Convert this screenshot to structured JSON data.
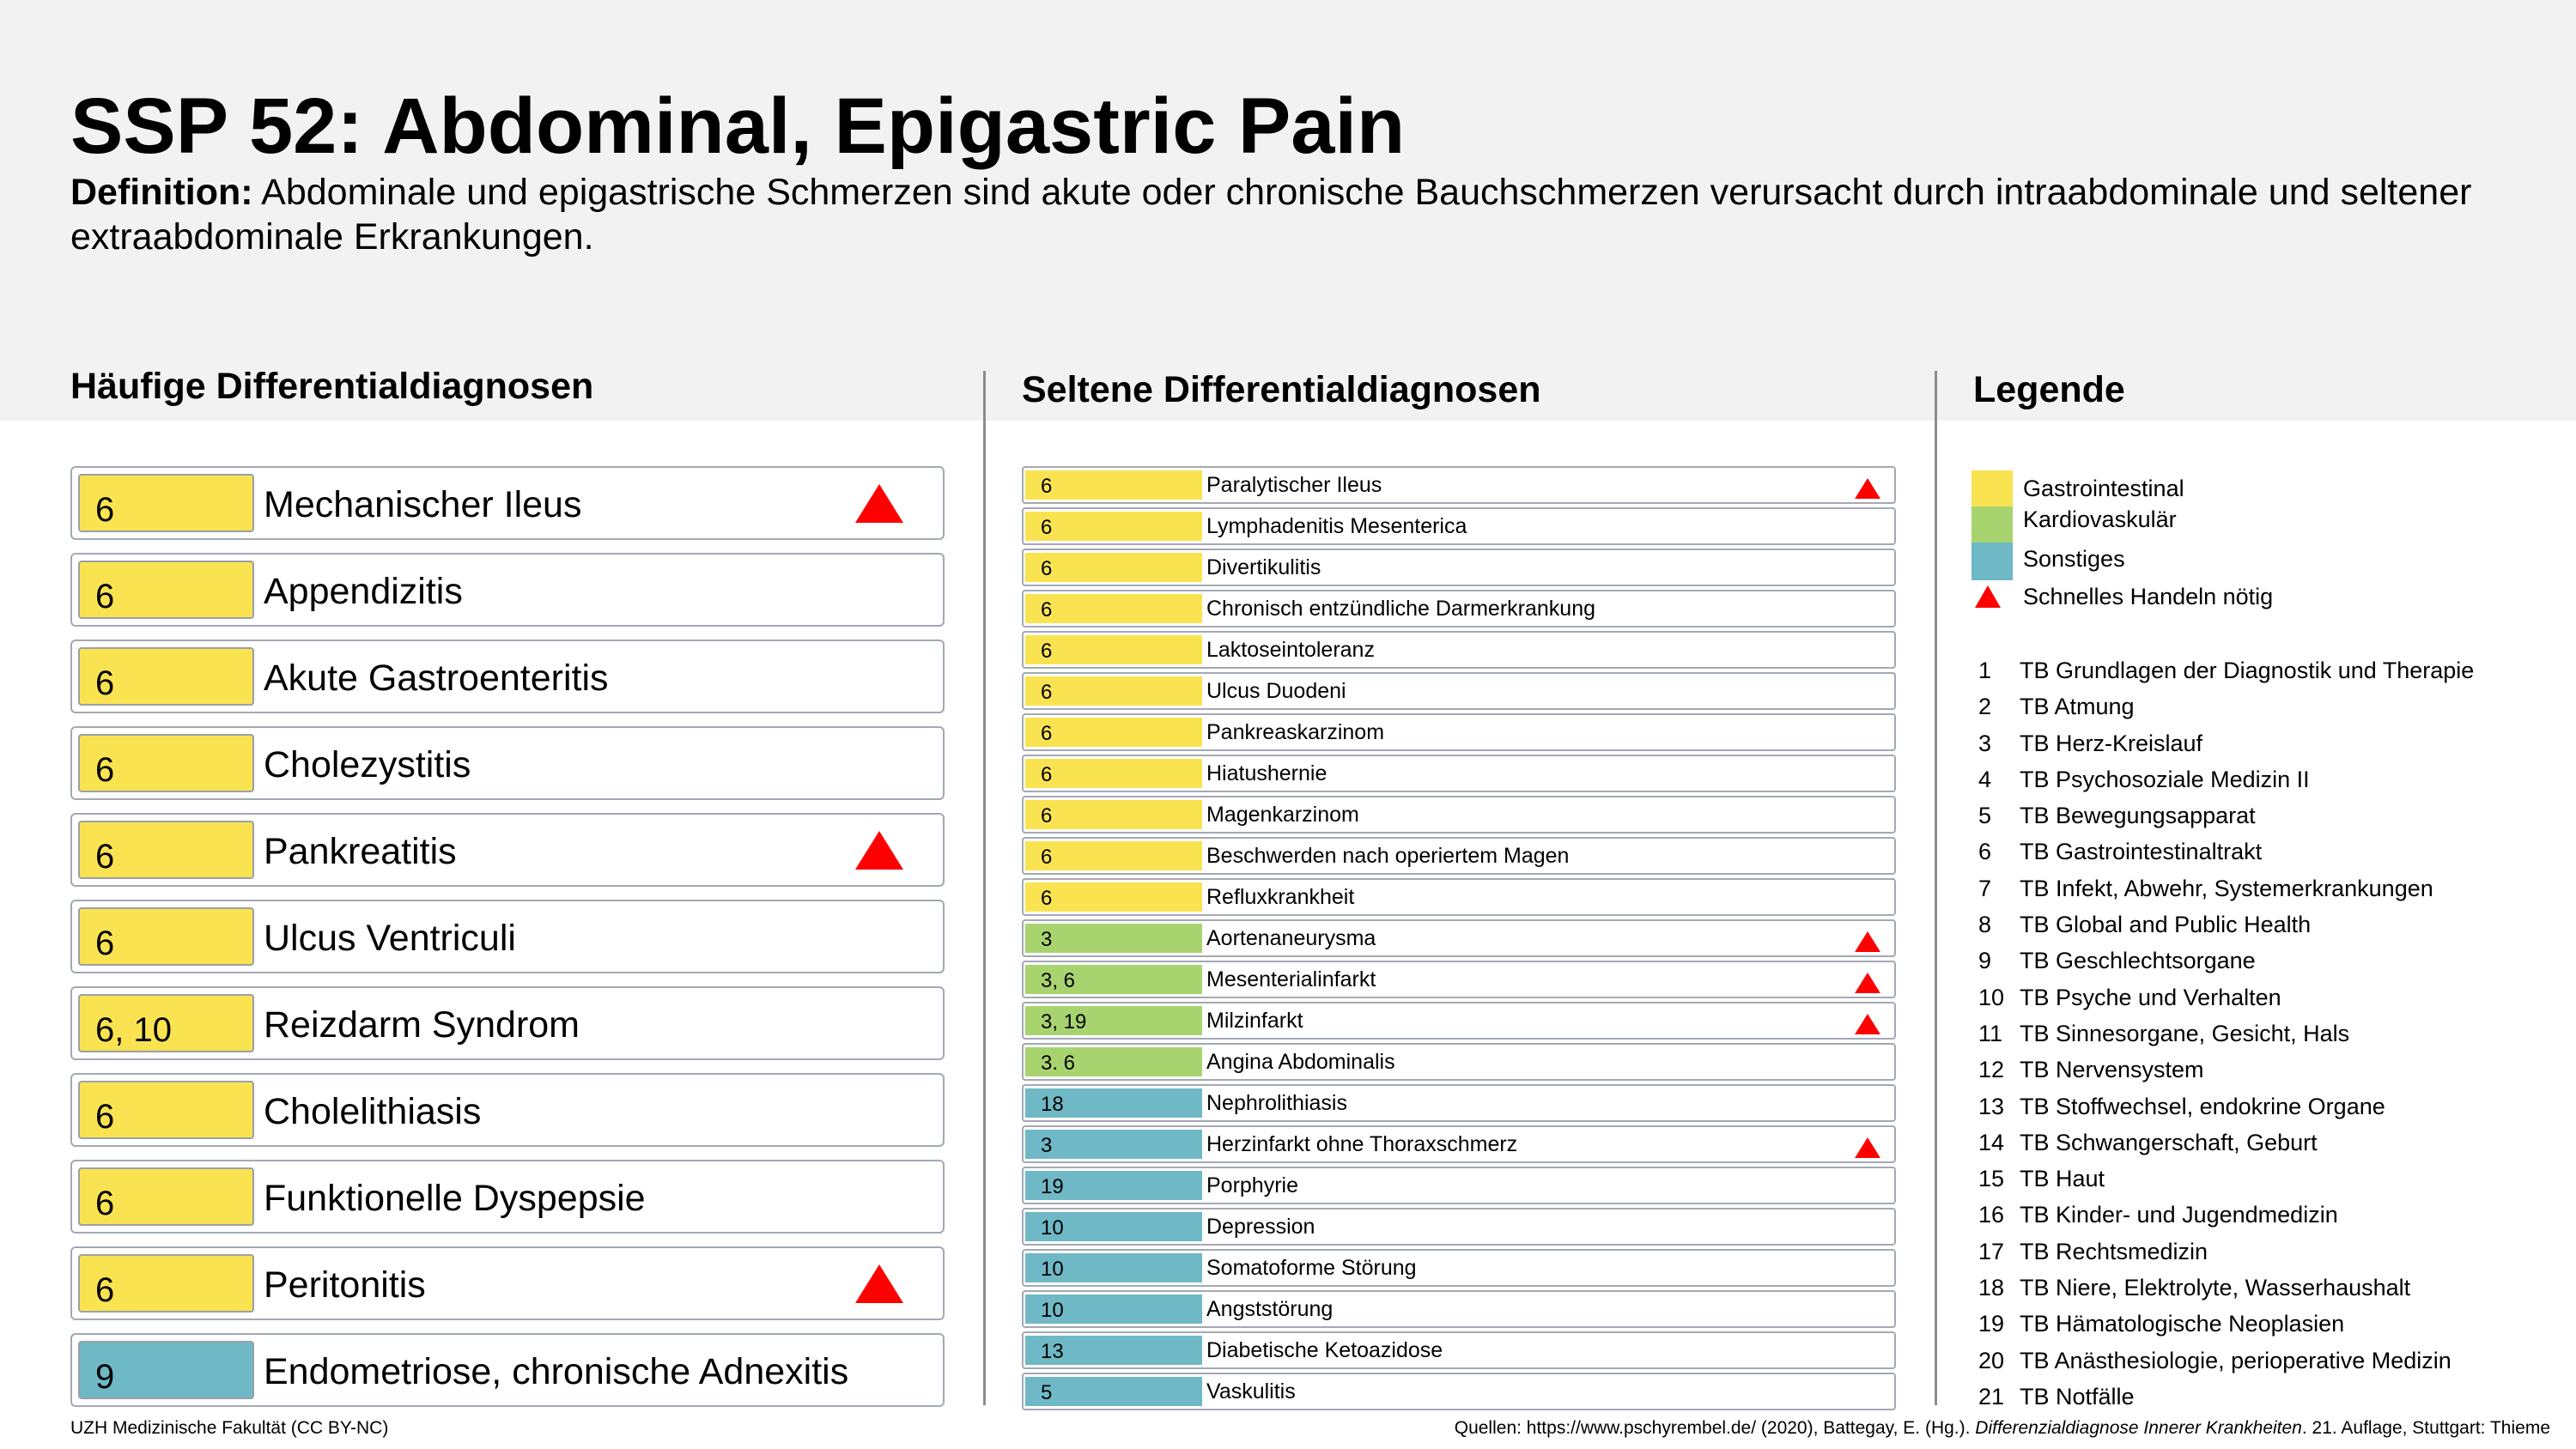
{
  "title": "SSP 52: Abdominal, Epigastric Pain",
  "definition": {
    "label": "Definition:",
    "text": "Abdominale und epigastrische Schmerzen sind akute oder chronische Bauchschmerzen verursacht durch intraabdominale und seltener extraabdominale Erkrankungen."
  },
  "sections": {
    "frequent": "Häufige Differentialdiagnosen",
    "rare": "Seltene Differentialdiagnosen",
    "legend": "Legende"
  },
  "colors": {
    "gastrointestinal": "#fae351",
    "cardiovascular": "#a8d46f",
    "other": "#6fb8c6",
    "urgent": "#ff0000"
  },
  "frequent": [
    {
      "code": "6",
      "label": "Mechanischer Ileus",
      "category": "gastrointestinal",
      "urgent": true
    },
    {
      "code": "6",
      "label": "Appendizitis",
      "category": "gastrointestinal",
      "urgent": false
    },
    {
      "code": "6",
      "label": "Akute Gastroenteritis",
      "category": "gastrointestinal",
      "urgent": false
    },
    {
      "code": "6",
      "label": "Cholezystitis",
      "category": "gastrointestinal",
      "urgent": false
    },
    {
      "code": "6",
      "label": "Pankreatitis",
      "category": "gastrointestinal",
      "urgent": true
    },
    {
      "code": "6",
      "label": "Ulcus Ventriculi",
      "category": "gastrointestinal",
      "urgent": false
    },
    {
      "code": "6, 10",
      "label": "Reizdarm Syndrom",
      "category": "gastrointestinal",
      "urgent": false
    },
    {
      "code": "6",
      "label": "Cholelithiasis",
      "category": "gastrointestinal",
      "urgent": false
    },
    {
      "code": "6",
      "label": "Funktionelle Dyspepsie",
      "category": "gastrointestinal",
      "urgent": false
    },
    {
      "code": "6",
      "label": "Peritonitis",
      "category": "gastrointestinal",
      "urgent": true
    },
    {
      "code": "9",
      "label": "Endometriose, chronische Adnexitis",
      "category": "other",
      "urgent": false
    }
  ],
  "rare": [
    {
      "code": "6",
      "label": "Paralytischer Ileus",
      "category": "gastrointestinal",
      "urgent": true
    },
    {
      "code": "6",
      "label": "Lymphadenitis Mesenterica",
      "category": "gastrointestinal",
      "urgent": false
    },
    {
      "code": "6",
      "label": "Divertikulitis",
      "category": "gastrointestinal",
      "urgent": false
    },
    {
      "code": "6",
      "label": "Chronisch entzündliche Darmerkrankung",
      "category": "gastrointestinal",
      "urgent": false
    },
    {
      "code": "6",
      "label": "Laktoseintoleranz",
      "category": "gastrointestinal",
      "urgent": false
    },
    {
      "code": "6",
      "label": "Ulcus Duodeni",
      "category": "gastrointestinal",
      "urgent": false
    },
    {
      "code": "6",
      "label": "Pankreaskarzinom",
      "category": "gastrointestinal",
      "urgent": false
    },
    {
      "code": "6",
      "label": "Hiatushernie",
      "category": "gastrointestinal",
      "urgent": false
    },
    {
      "code": "6",
      "label": "Magenkarzinom",
      "category": "gastrointestinal",
      "urgent": false
    },
    {
      "code": "6",
      "label": "Beschwerden nach operiertem Magen",
      "category": "gastrointestinal",
      "urgent": false
    },
    {
      "code": "6",
      "label": "Refluxkrankheit",
      "category": "gastrointestinal",
      "urgent": false
    },
    {
      "code": "3",
      "label": "Aortenaneurysma",
      "category": "cardiovascular",
      "urgent": true
    },
    {
      "code": "3, 6",
      "label": "Mesenterialinfarkt",
      "category": "cardiovascular",
      "urgent": true
    },
    {
      "code": "3, 19",
      "label": "Milzinfarkt",
      "category": "cardiovascular",
      "urgent": true
    },
    {
      "code": "3. 6",
      "label": "Angina Abdominalis",
      "category": "cardiovascular",
      "urgent": false
    },
    {
      "code": "18",
      "label": "Nephrolithiasis",
      "category": "other",
      "urgent": false
    },
    {
      "code": "3",
      "label": "Herzinfarkt ohne Thoraxschmerz",
      "category": "other",
      "urgent": true
    },
    {
      "code": "19",
      "label": "Porphyrie",
      "category": "other",
      "urgent": false
    },
    {
      "code": "10",
      "label": "Depression",
      "category": "other",
      "urgent": false
    },
    {
      "code": "10",
      "label": "Somatoforme Störung",
      "category": "other",
      "urgent": false
    },
    {
      "code": "10",
      "label": "Angststörung",
      "category": "other",
      "urgent": false
    },
    {
      "code": "13",
      "label": "Diabetische Ketoazidose",
      "category": "other",
      "urgent": false
    },
    {
      "code": "5",
      "label": "Vaskulitis",
      "category": "other",
      "urgent": false
    }
  ],
  "legend": {
    "gastrointestinal": "Gastrointestinal",
    "cardiovascular": "Kardiovaskulär",
    "other": "Sonstiges",
    "urgent": "Schnelles Handeln nötig"
  },
  "tb": [
    {
      "num": "1",
      "text": "TB Grundlagen der Diagnostik und Therapie"
    },
    {
      "num": "2",
      "text": "TB Atmung"
    },
    {
      "num": "3",
      "text": "TB Herz-Kreislauf"
    },
    {
      "num": "4",
      "text": "TB Psychosoziale Medizin II"
    },
    {
      "num": "5",
      "text": "TB Bewegungsapparat"
    },
    {
      "num": "6",
      "text": "TB Gastrointestinaltrakt"
    },
    {
      "num": "7",
      "text": "TB Infekt, Abwehr, Systemerkrankungen"
    },
    {
      "num": "8",
      "text": "TB Global and Public Health"
    },
    {
      "num": "9",
      "text": "TB Geschlechtsorgane"
    },
    {
      "num": "10",
      "text": "TB Psyche und Verhalten"
    },
    {
      "num": "11",
      "text": "TB Sinnesorgane, Gesicht, Hals"
    },
    {
      "num": "12",
      "text": "TB Nervensystem"
    },
    {
      "num": "13",
      "text": "TB Stoffwechsel, endokrine Organe"
    },
    {
      "num": "14",
      "text": "TB Schwangerschaft, Geburt"
    },
    {
      "num": "15",
      "text": "TB Haut"
    },
    {
      "num": "16",
      "text": "TB Kinder- und Jugendmedizin"
    },
    {
      "num": "17",
      "text": "TB Rechtsmedizin"
    },
    {
      "num": "18",
      "text": "TB Niere, Elektrolyte, Wasserhaushalt"
    },
    {
      "num": "19",
      "text": "TB Hämatologische Neoplasien"
    },
    {
      "num": "20",
      "text": "TB Anästhesiologie, perioperative Medizin"
    },
    {
      "num": "21",
      "text": "TB Notfälle"
    }
  ],
  "footer": {
    "left": "UZH Medizinische Fakultät (CC BY-NC)",
    "right_prefix": "Quellen: https://www.pschyrembel.de/ (2020), Battegay, E. (Hg.).",
    "right_italic": "Differenzialdiagnose Innerer Krankheiten",
    "right_suffix": ". 21. Auflage, Stuttgart: Thieme"
  }
}
